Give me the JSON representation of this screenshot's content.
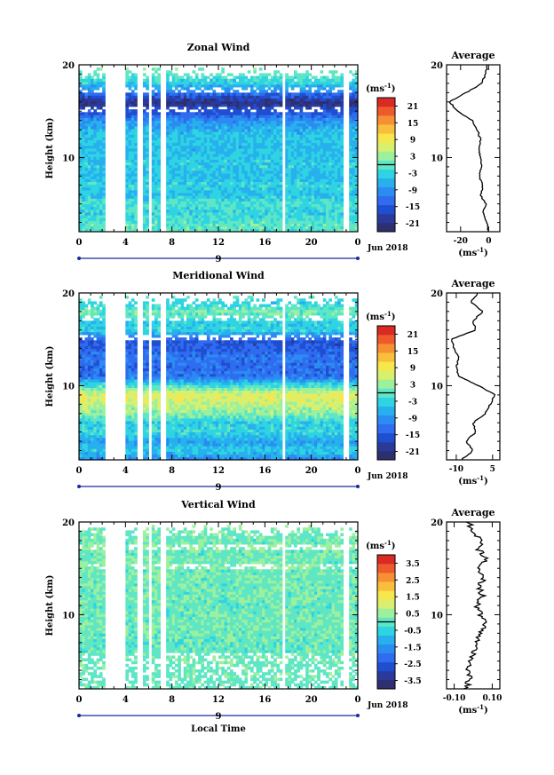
{
  "chart_data": [
    {
      "type": "heatmap",
      "title": "Zonal Wind",
      "ylabel": "Height (km)",
      "ylim": [
        2,
        20
      ],
      "yticks": [
        "10",
        "20"
      ],
      "xticks": [
        "0",
        "4",
        "8",
        "12",
        "16",
        "20",
        "0"
      ],
      "xlim": [
        0,
        24
      ],
      "day_label": "9",
      "date_label": "Jun 2018",
      "colorbar": {
        "unit": "(ms",
        "unit_exp": "-1",
        "unit_close": ")",
        "ticks": [
          "21",
          "15",
          "9",
          "3",
          "-3",
          "-9",
          "-15",
          "-21"
        ],
        "range": [
          -24,
          24
        ]
      },
      "gaps_hours": [
        [
          2.3,
          3.9
        ],
        [
          5.1,
          5.4
        ],
        [
          6.0,
          6.3
        ],
        [
          7.1,
          7.4
        ],
        [
          17.5,
          17.8
        ],
        [
          22.8,
          23.2
        ]
      ],
      "profile": {
        "title": "Average",
        "xticks": [
          "-20",
          "0"
        ],
        "xlim": [
          -30,
          8
        ],
        "xunit": "(ms",
        "xunit_exp": "-1",
        "xunit_close": ")",
        "yticks": [
          "10",
          "20"
        ],
        "heights": [
          2,
          3,
          4,
          5,
          6,
          7,
          8,
          9,
          10,
          11,
          12,
          13,
          14,
          15,
          16,
          17,
          18,
          19,
          20
        ],
        "values": [
          0,
          -1,
          -4,
          -2,
          -6,
          -4,
          -7,
          -5,
          -6,
          -7,
          -6,
          -8,
          -12,
          -22,
          -28,
          -16,
          -5,
          -2,
          -1
        ]
      }
    },
    {
      "type": "heatmap",
      "title": "Meridional Wind",
      "ylabel": "Height (km)",
      "ylim": [
        2,
        20
      ],
      "yticks": [
        "10",
        "20"
      ],
      "xticks": [
        "0",
        "4",
        "8",
        "12",
        "16",
        "20",
        "0"
      ],
      "xlim": [
        0,
        24
      ],
      "day_label": "9",
      "date_label": "Jun 2018",
      "colorbar": {
        "unit": "(ms",
        "unit_exp": "-1",
        "unit_close": ")",
        "ticks": [
          "21",
          "15",
          "9",
          "3",
          "-3",
          "-9",
          "-15",
          "-21"
        ],
        "range": [
          -24,
          24
        ]
      },
      "gaps_hours": [
        [
          2.3,
          3.9
        ],
        [
          5.1,
          5.4
        ],
        [
          6.0,
          6.3
        ],
        [
          7.1,
          7.4
        ],
        [
          17.5,
          17.8
        ],
        [
          22.8,
          23.2
        ]
      ],
      "profile": {
        "title": "Average",
        "xticks": [
          "-10",
          "5"
        ],
        "xlim": [
          -14,
          8
        ],
        "xunit": "(ms",
        "xunit_exp": "-1",
        "xunit_close": ")",
        "yticks": [
          "10",
          "20"
        ],
        "heights": [
          2,
          3,
          4,
          5,
          6,
          7,
          8,
          9,
          10,
          11,
          12,
          13,
          14,
          15,
          16,
          17,
          18,
          19,
          20
        ],
        "values": [
          -8,
          -3,
          -6,
          -2,
          -3,
          2,
          4,
          6,
          -1,
          -9,
          -10,
          -9,
          -11,
          -12,
          -2,
          -3,
          1,
          -4,
          -1
        ]
      }
    },
    {
      "type": "heatmap",
      "title": "Vertical Wind",
      "ylabel": "Height (km)",
      "xlabel": "Local Time",
      "ylim": [
        2,
        20
      ],
      "yticks": [
        "10",
        "20"
      ],
      "xticks": [
        "0",
        "4",
        "8",
        "12",
        "16",
        "20",
        "0"
      ],
      "xlim": [
        0,
        24
      ],
      "day_label": "9",
      "date_label": "Jun 2018",
      "colorbar": {
        "unit": "(ms",
        "unit_exp": "-1",
        "unit_close": ")",
        "ticks": [
          "3.5",
          "2.5",
          "1.5",
          "0.5",
          "-0.5",
          "-1.5",
          "-2.5",
          "-3.5"
        ],
        "range": [
          -4,
          4
        ]
      },
      "gaps_hours": [
        [
          2.3,
          3.9
        ],
        [
          5.1,
          5.4
        ],
        [
          6.0,
          6.3
        ],
        [
          7.1,
          7.4
        ],
        [
          17.5,
          17.8
        ],
        [
          22.8,
          23.2
        ]
      ],
      "profile": {
        "title": "Average",
        "xticks": [
          "-0.10",
          "0.10"
        ],
        "xlim": [
          -0.14,
          0.14
        ],
        "xunit": "(ms",
        "xunit_exp": "-1",
        "xunit_close": ")",
        "yticks": [
          "10",
          "20"
        ],
        "heights": [
          2,
          3,
          4,
          5,
          6,
          7,
          8,
          9,
          10,
          11,
          12,
          13,
          14,
          15,
          16,
          17,
          18,
          19,
          20
        ],
        "values": [
          -0.04,
          -0.02,
          -0.03,
          -0.01,
          0.0,
          0.02,
          0.04,
          0.06,
          0.04,
          0.02,
          0.05,
          0.03,
          0.06,
          0.02,
          0.07,
          0.03,
          0.05,
          -0.01,
          -0.02
        ]
      }
    }
  ]
}
